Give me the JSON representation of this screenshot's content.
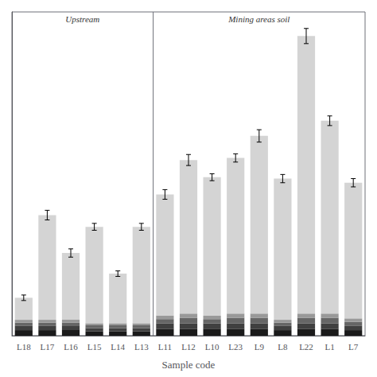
{
  "chart_data": {
    "type": "bar",
    "stacked": true,
    "xlabel": "Sample code",
    "categories": [
      "L18",
      "L17",
      "L16",
      "L15",
      "L14",
      "L13",
      "L11",
      "L12",
      "L10",
      "L23",
      "L9",
      "L8",
      "L22",
      "L1",
      "L7"
    ],
    "series": [
      {
        "color": "#1a1a1a",
        "values": [
          8,
          8,
          8,
          6,
          6,
          6,
          10,
          10,
          10,
          10,
          10,
          8,
          10,
          10,
          8
        ]
      },
      {
        "color": "#404040",
        "values": [
          6,
          6,
          6,
          5,
          5,
          5,
          8,
          8,
          8,
          8,
          8,
          6,
          8,
          8,
          6
        ]
      },
      {
        "color": "#666666",
        "values": [
          5,
          5,
          5,
          4,
          4,
          4,
          6,
          8,
          6,
          8,
          8,
          5,
          8,
          8,
          6
        ]
      },
      {
        "color": "#999999",
        "values": [
          4,
          4,
          4,
          3,
          3,
          3,
          5,
          6,
          5,
          6,
          6,
          4,
          6,
          6,
          5
        ]
      },
      {
        "color": "#d4d4d4",
        "values": [
          32,
          152,
          97,
          140,
          72,
          140,
          176,
          223,
          201,
          226,
          258,
          205,
          403,
          280,
          197
        ]
      }
    ],
    "error_bars": {
      "color": "#000000",
      "values": [
        4,
        7,
        6,
        5,
        4,
        5,
        7,
        8,
        5,
        6,
        9,
        6,
        11,
        7,
        6
      ]
    },
    "ylim": [
      0,
      470
    ],
    "tick_labels": "x",
    "grid": false,
    "annotations": [
      {
        "text": "Upstream",
        "from": "L18",
        "to": "L13"
      },
      {
        "text": "Mining areas soil",
        "from": "L11",
        "to": "L7"
      }
    ]
  }
}
